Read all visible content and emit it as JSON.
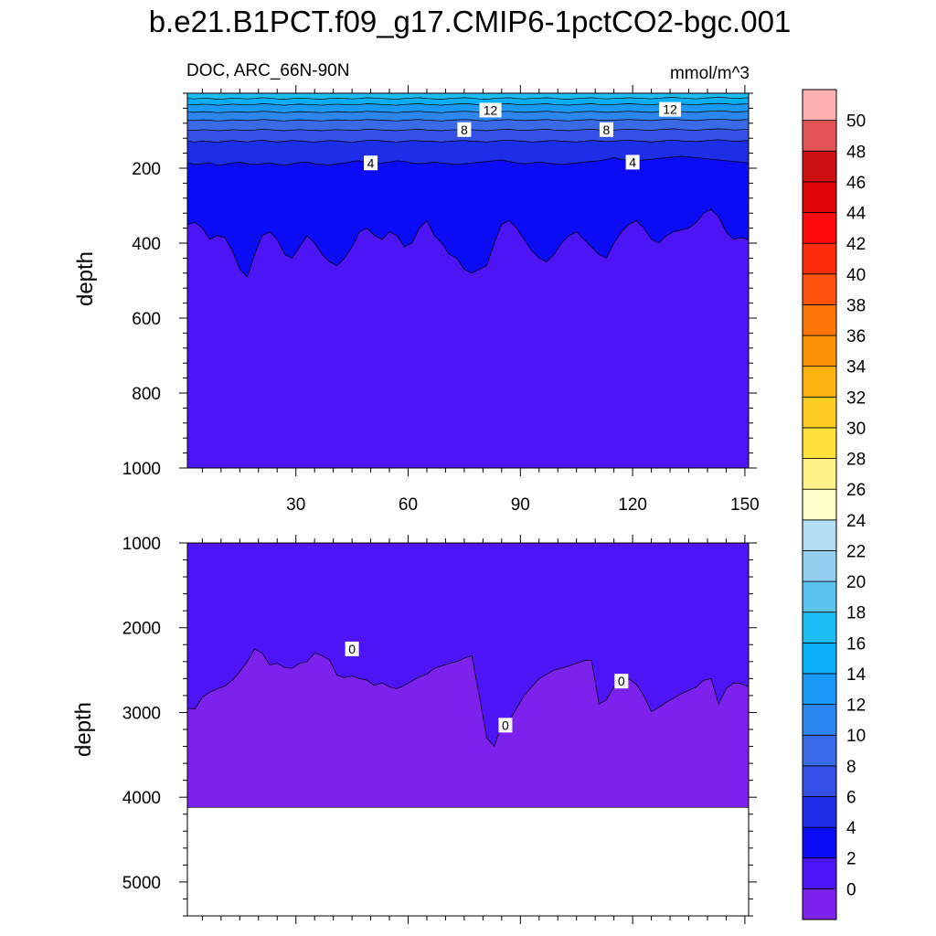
{
  "chart_data": {
    "type": "contour",
    "title": "b.e21.B1PCT.f09_g17.CMIP6-1pctCO2-bgc.001",
    "subtitle_left": "DOC, ARC_66N-90N",
    "units": "mmol/m^3",
    "xlabel": "",
    "ylabel": "depth",
    "xlim": [
      1,
      151
    ],
    "x_ticks": [
      30,
      60,
      90,
      120,
      150
    ],
    "x": [
      1,
      3,
      5,
      7,
      9,
      11,
      13,
      15,
      17,
      19,
      21,
      23,
      25,
      27,
      29,
      31,
      33,
      35,
      37,
      39,
      41,
      43,
      45,
      47,
      49,
      51,
      53,
      55,
      57,
      59,
      61,
      63,
      65,
      67,
      69,
      71,
      73,
      75,
      77,
      79,
      81,
      83,
      85,
      87,
      89,
      91,
      93,
      95,
      97,
      99,
      101,
      103,
      105,
      107,
      109,
      111,
      113,
      115,
      117,
      119,
      121,
      123,
      125,
      127,
      129,
      131,
      133,
      135,
      137,
      139,
      141,
      143,
      145,
      147,
      149,
      151
    ],
    "colorbar": {
      "levels": [
        0,
        2,
        4,
        6,
        8,
        10,
        12,
        14,
        16,
        18,
        20,
        22,
        24,
        26,
        28,
        30,
        32,
        34,
        36,
        38,
        40,
        42,
        44,
        46,
        48,
        50
      ],
      "colors": [
        "#7c22ec",
        "#4d15f5",
        "#0b0bf5",
        "#1c2ee8",
        "#3550e5",
        "#3a6ae8",
        "#2c86ef",
        "#1a98f5",
        "#0aaef8",
        "#1dbcf5",
        "#5ac3f0",
        "#92cff0",
        "#b2ddf2",
        "#fefec9",
        "#fdf188",
        "#fde03c",
        "#fdcc22",
        "#fdb30e",
        "#fd9309",
        "#fd7407",
        "#fd520a",
        "#fd2c0a",
        "#fc0a0a",
        "#dd0505",
        "#cc1212",
        "#e35555",
        "#fcb2b2"
      ]
    },
    "panels": [
      {
        "ylim": [
          0,
          1000
        ],
        "y_ticks": [
          200,
          400,
          600,
          800,
          1000
        ],
        "series": [
          {
            "name": "DOC 2-4 boundary",
            "level": 2,
            "values": [
              350,
              345,
              360,
              390,
              380,
              385,
              420,
              470,
              490,
              430,
              380,
              370,
              390,
              430,
              440,
              410,
              380,
              400,
              430,
              450,
              460,
              440,
              410,
              370,
              360,
              380,
              390,
              370,
              380,
              410,
              400,
              360,
              340,
              380,
              400,
              430,
              440,
              470,
              480,
              470,
              460,
              400,
              350,
              340,
              360,
              390,
              420,
              440,
              450,
              430,
              400,
              380,
              370,
              390,
              410,
              430,
              440,
              400,
              370,
              350,
              340,
              360,
              390,
              400,
              380,
              370,
              365,
              360,
              345,
              320,
              310,
              330,
              370,
              390,
              385,
              390
            ]
          },
          {
            "name": "DOC 4-6 boundary",
            "level": 4,
            "values": [
              185,
              190,
              188,
              185,
              192,
              190,
              186,
              184,
              188,
              190,
              188,
              186,
              190,
              192,
              188,
              185,
              184,
              188,
              190,
              192,
              188,
              186,
              182,
              180,
              185,
              188,
              186,
              184,
              180,
              182,
              186,
              188,
              186,
              184,
              186,
              188,
              190,
              188,
              186,
              184,
              182,
              180,
              178,
              182,
              186,
              188,
              186,
              184,
              186,
              188,
              190,
              188,
              186,
              184,
              182,
              180,
              176,
              172,
              176,
              180,
              182,
              178,
              176,
              174,
              172,
              170,
              168,
              170,
              172,
              174,
              176,
              178,
              180,
              182,
              184,
              186
            ]
          },
          {
            "name": "DOC 6-8 boundary",
            "level": 6,
            "values": [
              128,
              130,
              127,
              129,
              131,
              128,
              126,
              128,
              130,
              127,
              125,
              128,
              130,
              128,
              126,
              127,
              129,
              130,
              128,
              126,
              127,
              129,
              131,
              128,
              126,
              125,
              127,
              129,
              130,
              128,
              126,
              127,
              128,
              129,
              130,
              128,
              127,
              126,
              128,
              129,
              130,
              128,
              126,
              125,
              127,
              128,
              130,
              129,
              127,
              126,
              128,
              129,
              130,
              128,
              126,
              127,
              129,
              128,
              126,
              125,
              127,
              128,
              130,
              128,
              126,
              125,
              127,
              128,
              129,
              127,
              125,
              124,
              126,
              128,
              127,
              126
            ]
          },
          {
            "name": "DOC 8-10 boundary",
            "level": 8,
            "values": [
              98,
              99,
              97,
              98,
              100,
              99,
              97,
              98,
              99,
              98,
              96,
              97,
              99,
              100,
              98,
              97,
              98,
              99,
              100,
              98,
              97,
              98,
              99,
              98,
              96,
              97,
              98,
              99,
              100,
              98,
              97,
              96,
              98,
              99,
              100,
              98,
              97,
              96,
              97,
              99,
              100,
              98,
              97,
              96,
              98,
              99,
              98,
              97,
              96,
              98,
              99,
              100,
              98,
              97,
              96,
              98,
              99,
              98,
              97,
              96,
              97,
              98,
              99,
              97,
              96,
              95,
              97,
              98,
              99,
              97,
              96,
              95,
              96,
              98,
              97,
              96
            ]
          },
          {
            "name": "DOC 10-12 boundary",
            "level": 10,
            "values": [
              72,
              73,
              71,
              72,
              74,
              73,
              71,
              72,
              73,
              72,
              70,
              71,
              73,
              74,
              72,
              71,
              72,
              73,
              74,
              72,
              71,
              72,
              73,
              72,
              70,
              71,
              72,
              73,
              74,
              72,
              71,
              70,
              72,
              73,
              74,
              72,
              71,
              70,
              71,
              73,
              74,
              72,
              71,
              70,
              72,
              73,
              72,
              71,
              70,
              72,
              73,
              74,
              72,
              71,
              70,
              72,
              73,
              72,
              71,
              70,
              71,
              72,
              73,
              71,
              70,
              69,
              71,
              72,
              73,
              71,
              70,
              69,
              70,
              72,
              71,
              70
            ]
          },
          {
            "name": "DOC 12-14 boundary",
            "level": 12,
            "values": [
              50,
              51,
              49,
              50,
              52,
              51,
              49,
              50,
              51,
              50,
              48,
              49,
              51,
              52,
              50,
              49,
              50,
              51,
              52,
              50,
              49,
              50,
              51,
              50,
              48,
              49,
              50,
              51,
              52,
              50,
              49,
              48,
              50,
              51,
              52,
              50,
              49,
              48,
              49,
              51,
              52,
              50,
              49,
              48,
              50,
              51,
              50,
              49,
              48,
              50,
              51,
              52,
              50,
              49,
              48,
              50,
              51,
              50,
              49,
              48,
              49,
              50,
              51,
              49,
              48,
              47,
              49,
              50,
              51,
              49,
              48,
              47,
              48,
              50,
              49,
              48
            ]
          },
          {
            "name": "DOC 14-16 boundary",
            "level": 14,
            "values": [
              30,
              31,
              29,
              30,
              32,
              31,
              29,
              30,
              31,
              30,
              28,
              29,
              31,
              32,
              30,
              29,
              30,
              31,
              32,
              30,
              29,
              30,
              31,
              30,
              28,
              29,
              30,
              31,
              32,
              30,
              29,
              28,
              30,
              31,
              32,
              30,
              29,
              28,
              29,
              31,
              32,
              30,
              29,
              28,
              30,
              31,
              30,
              29,
              28,
              30,
              31,
              32,
              30,
              29,
              28,
              30,
              31,
              30,
              29,
              28,
              29,
              30,
              31,
              29,
              28,
              27,
              29,
              30,
              31,
              29,
              28,
              27,
              28,
              30,
              29,
              28
            ]
          },
          {
            "name": "DOC 16-18 boundary",
            "level": 16,
            "values": [
              14,
              15,
              13,
              14,
              16,
              15,
              13,
              14,
              15,
              14,
              12,
              13,
              15,
              16,
              14,
              13,
              14,
              15,
              16,
              14,
              13,
              14,
              15,
              14,
              12,
              13,
              14,
              15,
              16,
              14,
              13,
              12,
              14,
              15,
              16,
              14,
              13,
              12,
              13,
              15,
              16,
              14,
              13,
              12,
              14,
              15,
              14,
              13,
              12,
              14,
              15,
              16,
              14,
              13,
              12,
              14,
              15,
              14,
              13,
              12,
              13,
              14,
              15,
              13,
              12,
              11,
              13,
              14,
              15,
              13,
              12,
              11,
              12,
              14,
              13,
              12
            ]
          }
        ],
        "contour_labels": [
          {
            "text": "12",
            "x": 82,
            "y": 45
          },
          {
            "text": "12",
            "x": 130,
            "y": 43
          },
          {
            "text": "8",
            "x": 75,
            "y": 97
          },
          {
            "text": "8",
            "x": 113,
            "y": 97
          },
          {
            "text": "4",
            "x": 50,
            "y": 186
          },
          {
            "text": "4",
            "x": 120,
            "y": 184
          }
        ]
      },
      {
        "ylim": [
          1000,
          5400
        ],
        "y_ticks": [
          1000,
          2000,
          3000,
          4000,
          5000
        ],
        "bottom_depth": 4120,
        "series": [
          {
            "name": "DOC 0-2 boundary",
            "level": 0,
            "values": [
              2950,
              2960,
              2820,
              2760,
              2720,
              2690,
              2620,
              2520,
              2400,
              2250,
              2300,
              2440,
              2420,
              2470,
              2480,
              2420,
              2400,
              2300,
              2330,
              2380,
              2560,
              2590,
              2570,
              2600,
              2620,
              2680,
              2650,
              2700,
              2720,
              2680,
              2630,
              2580,
              2550,
              2480,
              2450,
              2420,
              2400,
              2360,
              2330,
              2800,
              3300,
              3400,
              3150,
              3100,
              2950,
              2800,
              2700,
              2600,
              2550,
              2500,
              2480,
              2450,
              2420,
              2390,
              2380,
              2900,
              2850,
              2700,
              2640,
              2600,
              2670,
              2800,
              2990,
              2940,
              2880,
              2830,
              2780,
              2740,
              2700,
              2620,
              2600,
              2900,
              2720,
              2650,
              2660,
              2700
            ]
          }
        ],
        "contour_labels": [
          {
            "text": "0",
            "x": 45,
            "y": 2250
          },
          {
            "text": "0",
            "x": 86,
            "y": 3150
          },
          {
            "text": "0",
            "x": 117,
            "y": 2630
          }
        ]
      }
    ]
  }
}
